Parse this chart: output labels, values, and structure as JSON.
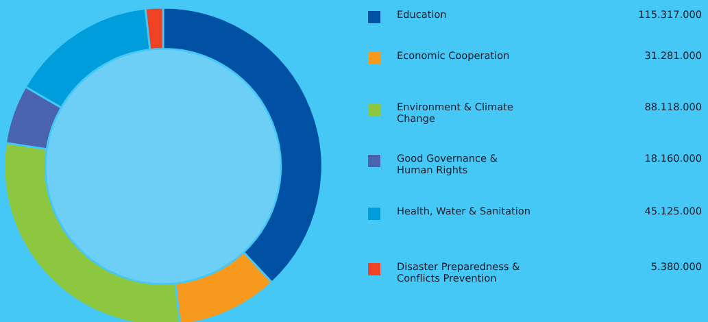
{
  "chart_data": {
    "type": "donut",
    "categories": [
      "Education",
      "Economic Cooperation",
      "Environment & Climate\nChange",
      "Good Governance &\nHuman Rights",
      "Health, Water & Sanitation",
      "Disaster Preparedness &\nConflicts Prevention"
    ],
    "values": [
      115317000,
      31281000,
      88118000,
      18160000,
      45125000,
      5380000
    ],
    "value_labels": [
      "115.317.000",
      "31.281.000",
      "88.118.000",
      "18.160.000",
      "45.125.000",
      "5.380.000"
    ],
    "colors": [
      "#0050a4",
      "#f7991c",
      "#8dc63f",
      "#4a63ae",
      "#009ddc",
      "#ef4123"
    ],
    "legend": "right"
  }
}
